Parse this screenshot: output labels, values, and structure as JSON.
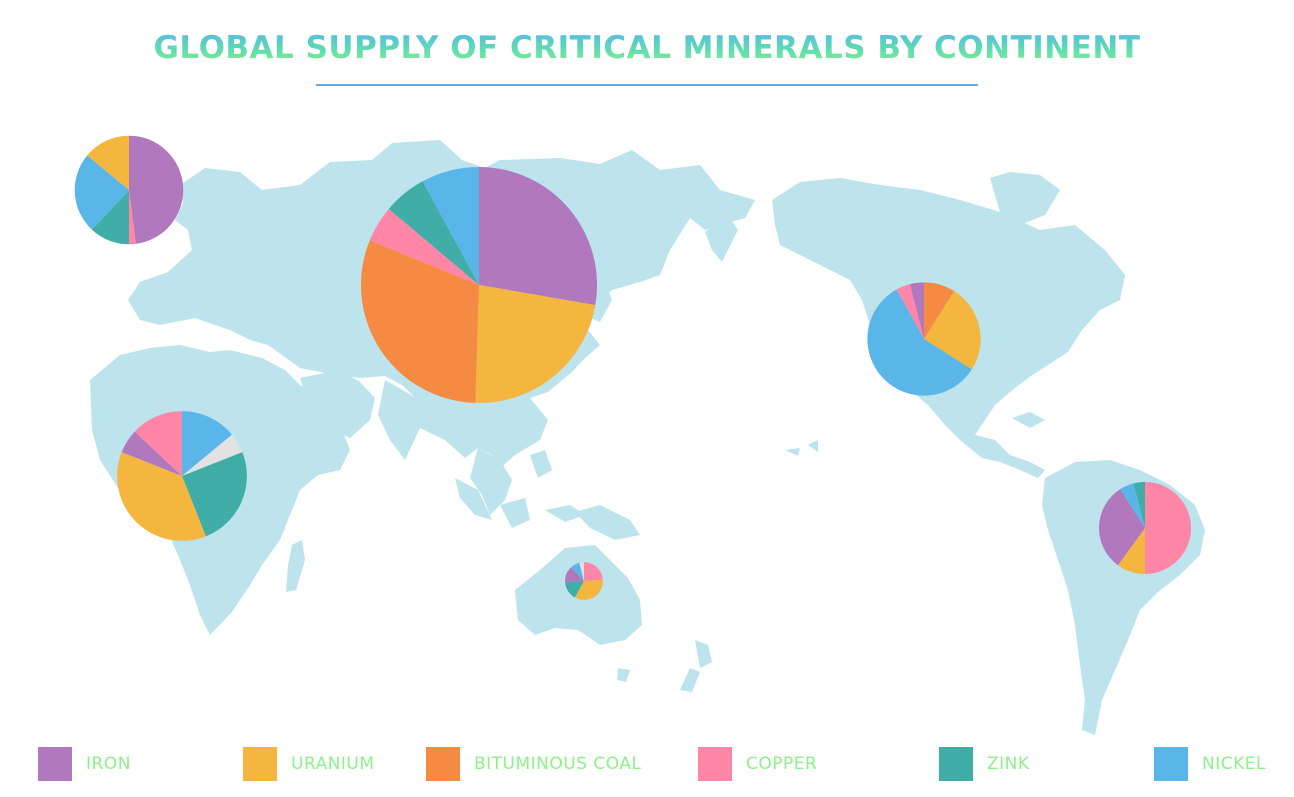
{
  "title": "GLOBAL SUPPLY OF CRITICAL MINERALS BY CONTINENT",
  "colors": {
    "land": "#bde3ec",
    "title_gradient": [
      "#56b9e8",
      "#5fdcb0",
      "#8ef08a"
    ],
    "legend_text": "#8df08a",
    "Other": "#e2e2e2"
  },
  "legend": [
    {
      "label": "IRON",
      "color": "#b178bd"
    },
    {
      "label": "URANIUM",
      "color": "#f5b640"
    },
    {
      "label": "BITUMINOUS COAL",
      "color": "#f58a42"
    },
    {
      "label": "COPPER",
      "color": "#ff86a7"
    },
    {
      "label": "ZINK",
      "color": "#40ada6"
    },
    {
      "label": "NICKEL",
      "color": "#5ab5e8"
    }
  ],
  "chart_data": {
    "type": "pie",
    "title": "GLOBAL SUPPLY OF CRITICAL MINERALS BY CONTINENT",
    "background": "world map",
    "legend_position": "bottom",
    "series_names": [
      "IRON",
      "URANIUM",
      "BITUMINOUS COAL",
      "COPPER",
      "ZINK",
      "NICKEL"
    ],
    "pies": [
      {
        "region": "Europe",
        "relative_size": 0.46,
        "slices": [
          {
            "name": "IRON",
            "value": 48
          },
          {
            "name": "COPPER",
            "value": 2
          },
          {
            "name": "ZINK",
            "value": 12
          },
          {
            "name": "NICKEL",
            "value": 24
          },
          {
            "name": "URANIUM",
            "value": 14
          }
        ]
      },
      {
        "region": "Asia",
        "relative_size": 1.0,
        "slices": [
          {
            "name": "IRON",
            "value": 28
          },
          {
            "name": "URANIUM",
            "value": 23
          },
          {
            "name": "BITUMINOUS COAL",
            "value": 31
          },
          {
            "name": "COPPER",
            "value": 5
          },
          {
            "name": "ZINK",
            "value": 6
          },
          {
            "name": "NICKEL",
            "value": 8
          }
        ]
      },
      {
        "region": "Africa",
        "relative_size": 0.55,
        "slices": [
          {
            "name": "NICKEL",
            "value": 14
          },
          {
            "name": "Other",
            "value": 5
          },
          {
            "name": "ZINK",
            "value": 25
          },
          {
            "name": "URANIUM",
            "value": 37
          },
          {
            "name": "IRON",
            "value": 6
          },
          {
            "name": "COPPER",
            "value": 13
          }
        ]
      },
      {
        "region": "North America",
        "relative_size": 0.48,
        "slices": [
          {
            "name": "BITUMINOUS COAL",
            "value": 9
          },
          {
            "name": "URANIUM",
            "value": 25
          },
          {
            "name": "NICKEL",
            "value": 58
          },
          {
            "name": "COPPER",
            "value": 4
          },
          {
            "name": "IRON",
            "value": 4
          }
        ]
      },
      {
        "region": "South America",
        "relative_size": 0.39,
        "slices": [
          {
            "name": "COPPER",
            "value": 50
          },
          {
            "name": "URANIUM",
            "value": 10
          },
          {
            "name": "IRON",
            "value": 31
          },
          {
            "name": "NICKEL",
            "value": 5
          },
          {
            "name": "ZINK",
            "value": 4
          }
        ]
      },
      {
        "region": "Australia",
        "relative_size": 0.16,
        "slices": [
          {
            "name": "COPPER",
            "value": 24
          },
          {
            "name": "URANIUM",
            "value": 34
          },
          {
            "name": "ZINK",
            "value": 16
          },
          {
            "name": "IRON",
            "value": 14
          },
          {
            "name": "NICKEL",
            "value": 8
          },
          {
            "name": "Other",
            "value": 4
          }
        ]
      }
    ]
  }
}
